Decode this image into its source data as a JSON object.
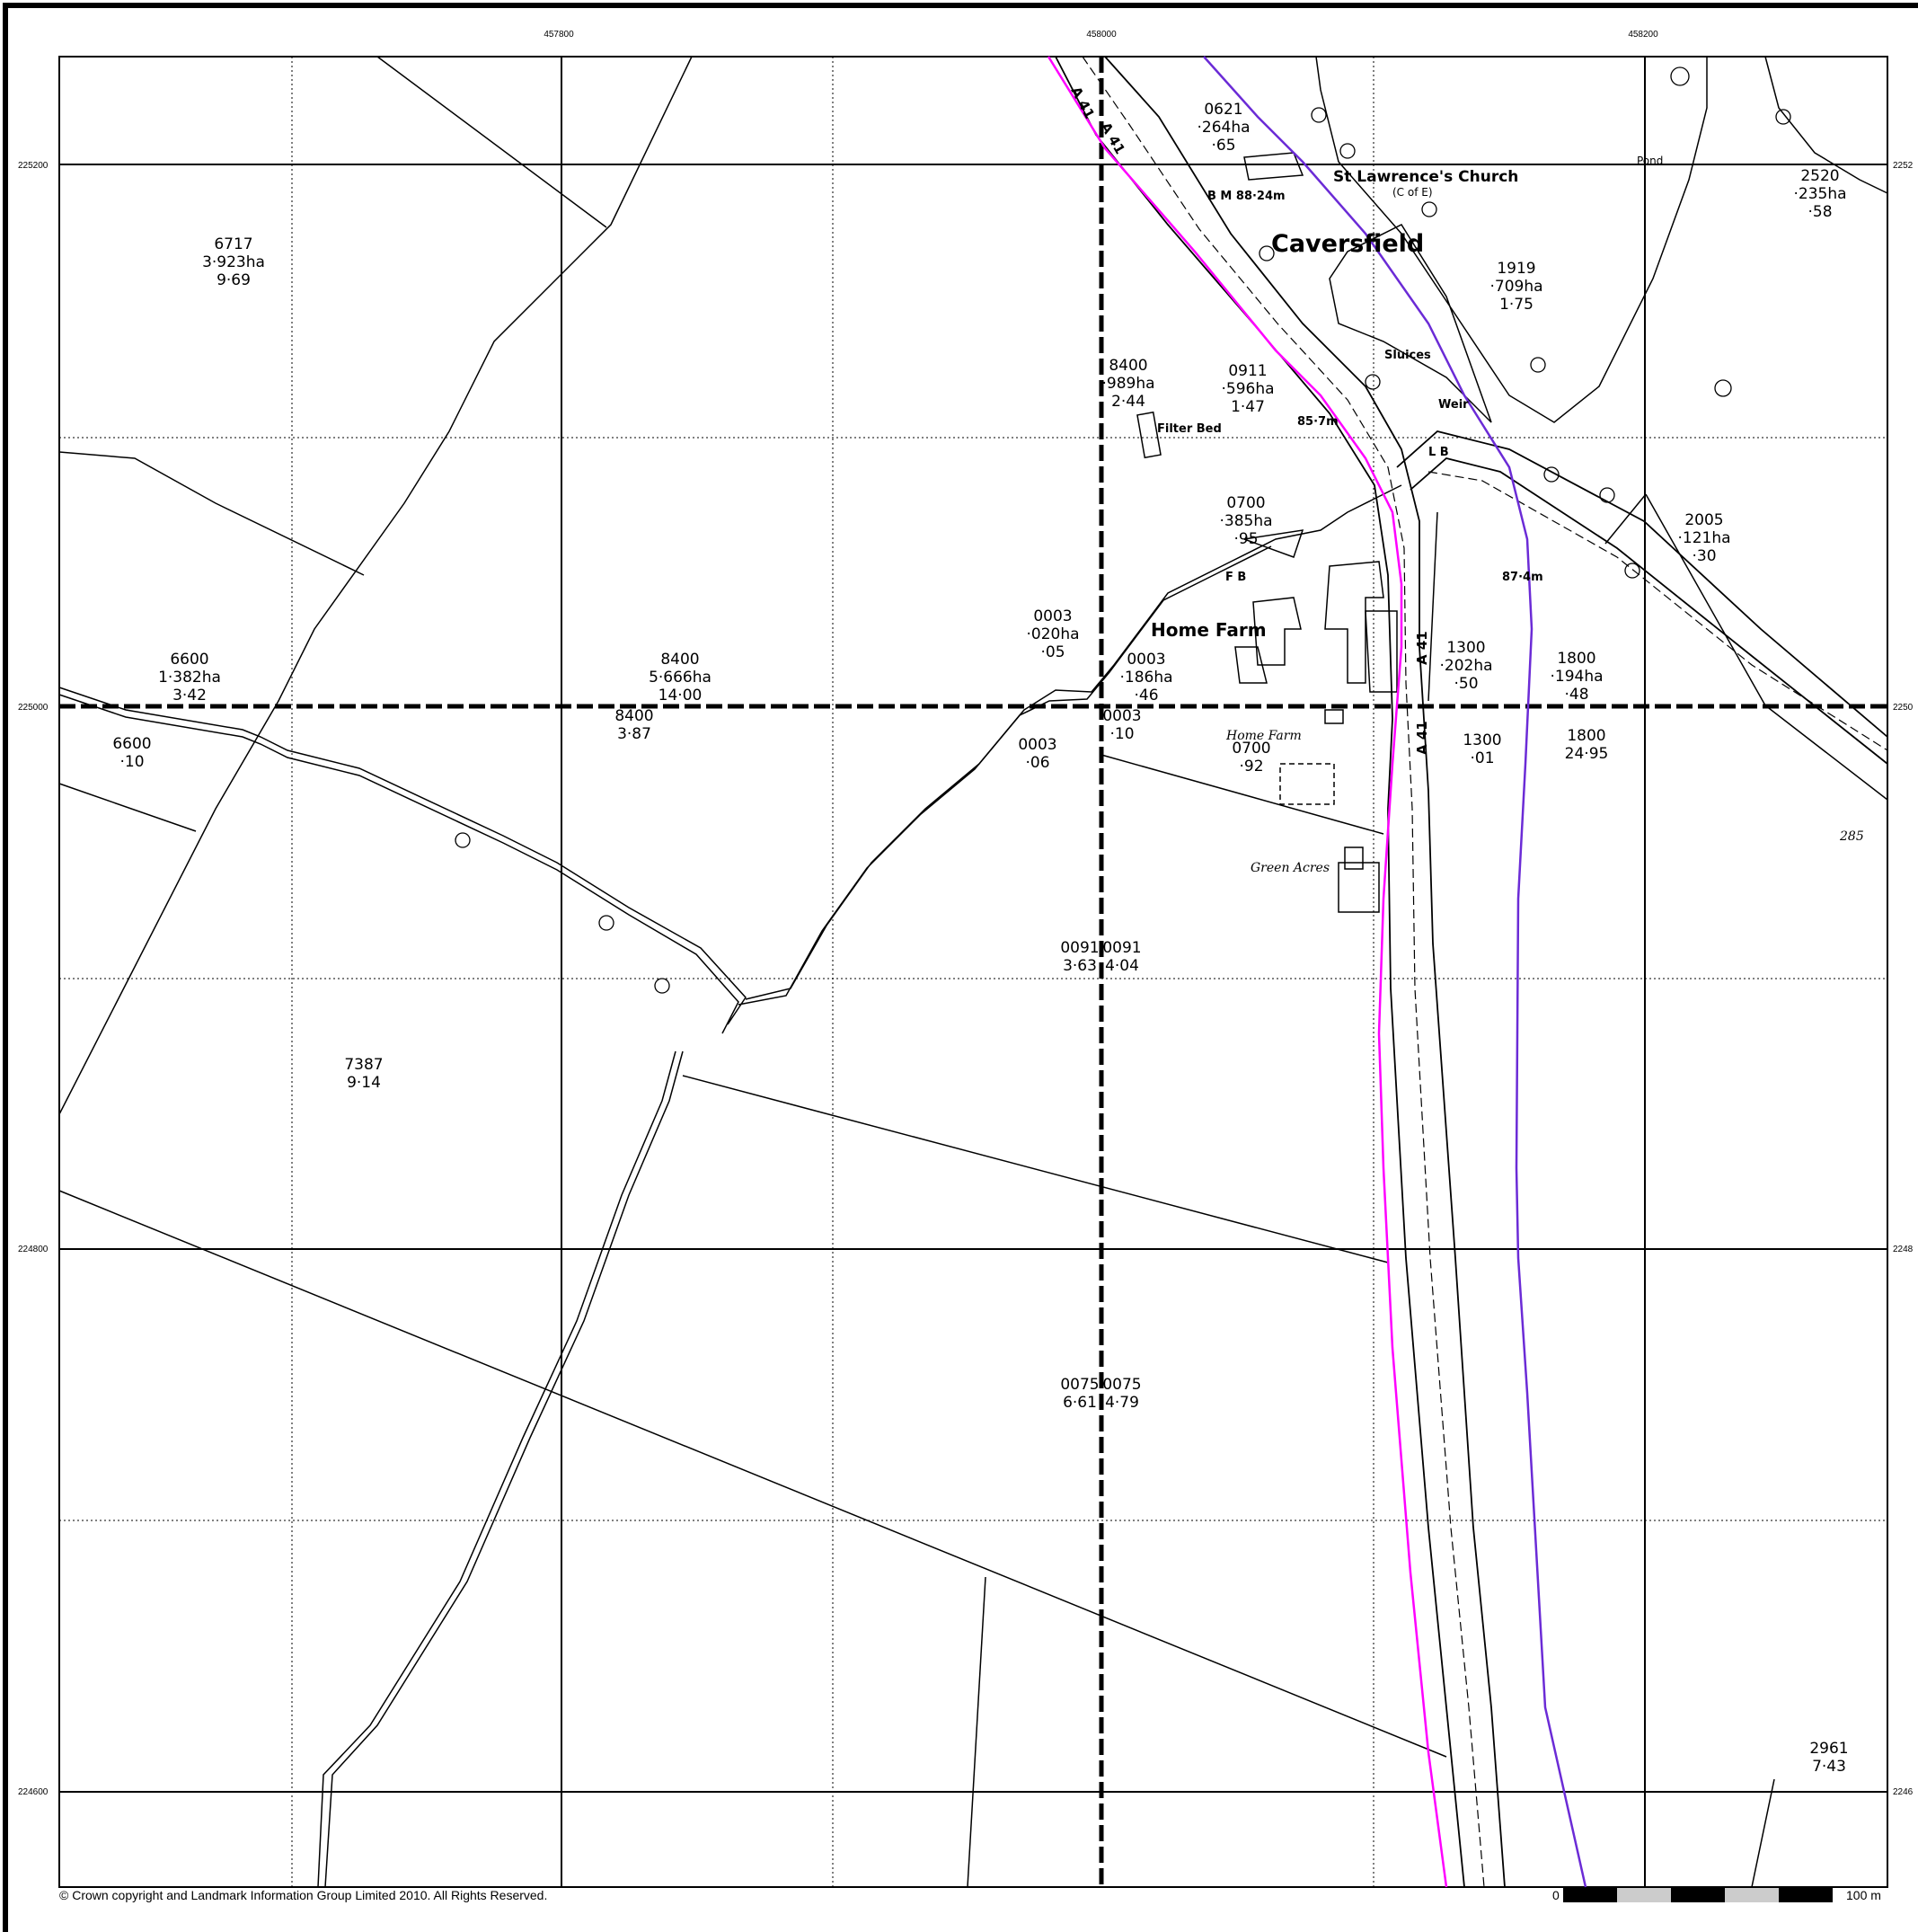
{
  "grid": {
    "eastings": [
      "457800",
      "458000",
      "458200"
    ],
    "northings": [
      "225200",
      "225000",
      "224800",
      "224600"
    ],
    "northings_right": [
      "2252",
      "2250",
      "2248",
      "2246"
    ]
  },
  "places": {
    "caversfield": "Caversfield",
    "church": "St Lawrence's Church",
    "church_sub": "(C of E)",
    "home_farm": "Home Farm",
    "home_farm_small": "Home Farm",
    "green_acres": "Green Acres",
    "filter_bed": "Filter Bed",
    "sluices": "Sluices",
    "weir": "Weir",
    "pond": "Pond",
    "bm": "B M  88·24m",
    "fb": "F B",
    "lb": "L B",
    "spot_857": "85·7m",
    "spot_874": "87·4m",
    "road_a41_a": "A 41",
    "road_a41_b": "A 41",
    "road_a41_c": "A 41",
    "road_a41_d": "A 41",
    "num_285": "285"
  },
  "parcels": [
    {
      "id": "p6717",
      "lines": [
        "6717",
        "3·923ha",
        "9·69"
      ]
    },
    {
      "id": "p6600a",
      "lines": [
        "6600",
        "1·382ha",
        "3·42"
      ]
    },
    {
      "id": "p6600b",
      "lines": [
        "6600",
        "·10"
      ]
    },
    {
      "id": "p8400a",
      "lines": [
        "8400",
        "5·666ha",
        "14·00"
      ]
    },
    {
      "id": "p8400b",
      "lines": [
        "8400",
        "3·87"
      ]
    },
    {
      "id": "p8400c",
      "lines": [
        "8400",
        "·989ha",
        "2·44"
      ]
    },
    {
      "id": "p0911",
      "lines": [
        "0911",
        "·596ha",
        "1·47"
      ]
    },
    {
      "id": "p0621",
      "lines": [
        "0621",
        "·264ha",
        "·65"
      ]
    },
    {
      "id": "p0700a",
      "lines": [
        "0700",
        "·385ha",
        "·95"
      ]
    },
    {
      "id": "p0700b",
      "lines": [
        "0700",
        "·92"
      ]
    },
    {
      "id": "p0003a",
      "lines": [
        "0003",
        "·020ha",
        "·05"
      ]
    },
    {
      "id": "p0003b",
      "lines": [
        "0003",
        "·186ha",
        "·46"
      ]
    },
    {
      "id": "p0003c",
      "lines": [
        "0003",
        "·10"
      ]
    },
    {
      "id": "p0003d",
      "lines": [
        "0003",
        "·06"
      ]
    },
    {
      "id": "p1919",
      "lines": [
        "1919",
        "·709ha",
        "1·75"
      ]
    },
    {
      "id": "p2520",
      "lines": [
        "2520",
        "·235ha",
        "·58"
      ]
    },
    {
      "id": "p2005",
      "lines": [
        "2005",
        "·121ha",
        "·30"
      ]
    },
    {
      "id": "p1300a",
      "lines": [
        "1300",
        "·202ha",
        "·50"
      ]
    },
    {
      "id": "p1300b",
      "lines": [
        "1300",
        "·01"
      ]
    },
    {
      "id": "p1800a",
      "lines": [
        "1800",
        "·194ha",
        "·48"
      ]
    },
    {
      "id": "p1800b",
      "lines": [
        "1800",
        "24·95"
      ]
    },
    {
      "id": "p0091a",
      "lines": [
        "0091",
        "3·63"
      ]
    },
    {
      "id": "p0091b",
      "lines": [
        "0091",
        "4·04"
      ]
    },
    {
      "id": "p7387",
      "lines": [
        "7387",
        "9·14"
      ]
    },
    {
      "id": "p0075a",
      "lines": [
        "0075",
        "6·61"
      ]
    },
    {
      "id": "p0075b",
      "lines": [
        "0075",
        "4·79"
      ]
    },
    {
      "id": "p2961",
      "lines": [
        "2961",
        "7·43"
      ]
    }
  ],
  "footer": {
    "copyright": "© Crown copyright and Landmark Information Group Limited 2010.  All Rights Reserved.",
    "scale_start": "0",
    "scale_end": "100 m"
  },
  "colors": {
    "magenta_line": "#ff00ff",
    "purple_line": "#6b2bd6"
  }
}
